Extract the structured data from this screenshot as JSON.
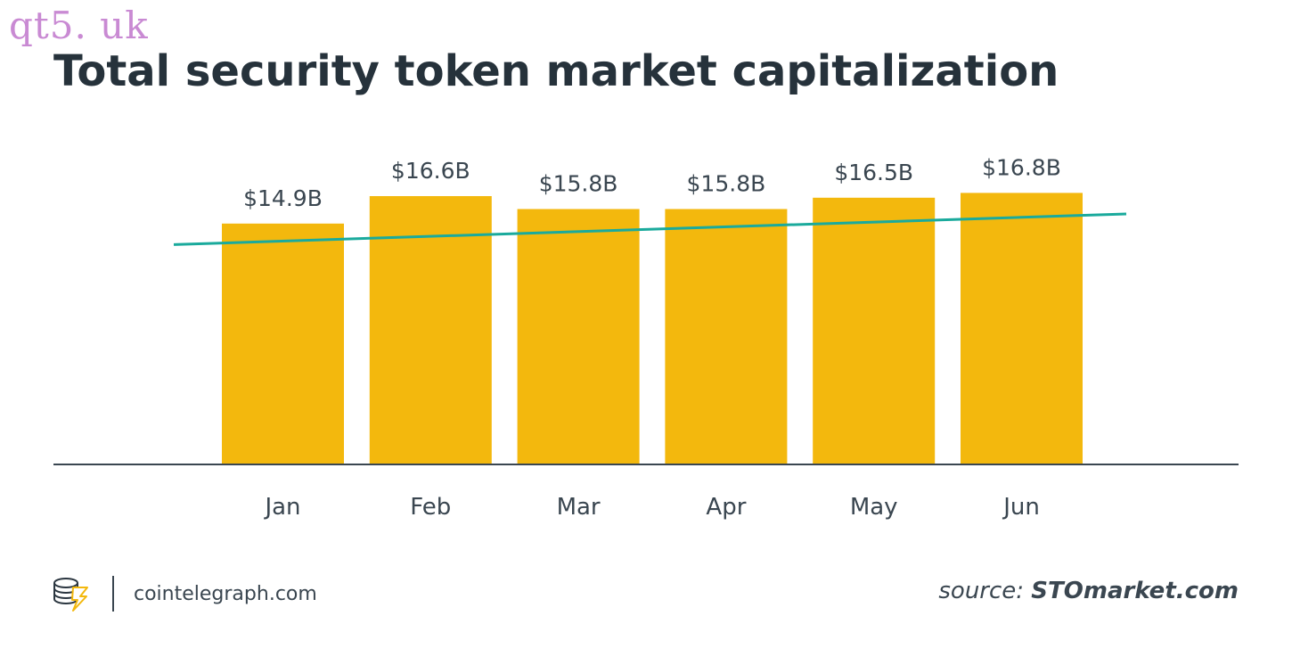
{
  "watermark": "qt5. uk",
  "chart_data": {
    "type": "bar",
    "title": "Total security token market capitalization",
    "categories": [
      "Jan",
      "Feb",
      "Mar",
      "Apr",
      "May",
      "Jun"
    ],
    "values": [
      14.9,
      16.6,
      15.8,
      15.8,
      16.5,
      16.8
    ],
    "value_labels": [
      "$14.9B",
      "$16.6B",
      "$15.8B",
      "$15.8B",
      "$16.5B",
      "$16.8B"
    ],
    "unit": "USD billions",
    "ylim": [
      0,
      18.2
    ],
    "trendline": {
      "start": 13.6,
      "end": 15.5
    },
    "grid": false,
    "legend": "none",
    "colors": {
      "bar": "#F3B80D",
      "trend": "#1AAA9C",
      "axis": "#3A4650",
      "text": "#3A4650"
    }
  },
  "footer": {
    "brand": "cointelegraph.com",
    "source_prefix": "source: ",
    "source_name": "STOmarket.com",
    "logo_icon": "cointelegraph-logo-icon"
  }
}
